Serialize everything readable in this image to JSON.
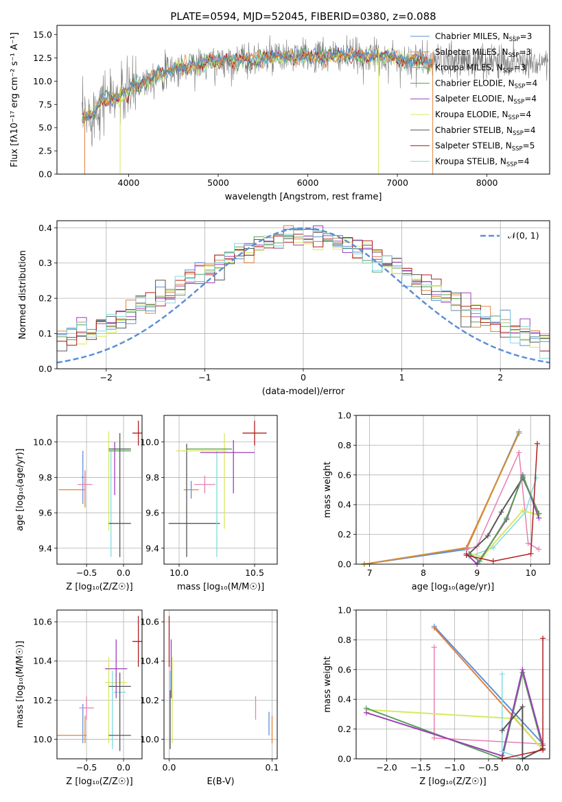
{
  "figure": {
    "title": "PLATE=0594, MJD=52045, FIBERID=0380, z=0.088",
    "colors": {
      "Chabrier MILES": "#5b8fd6",
      "Salpeter MILES": "#e0803c",
      "Kroupa MILES": "#c99a2e",
      "Chabrier ELODIE": "#5a9e5a",
      "Salpeter ELODIE": "#9b3fb5",
      "Kroupa ELODIE": "#d8e85e",
      "Chabrier STELIB": "#555555",
      "Salpeter STELIB": "#b01c1c",
      "Kroupa STELIB": "#7fdbe0",
      "pink": "#e77fb0",
      "gauss": "#5b8fd6"
    }
  },
  "chart_data": [
    {
      "id": "spectrum",
      "type": "line",
      "title": "PLATE=0594, MJD=52045, FIBERID=0380, z=0.088",
      "xlabel": "wavelength [Angstrom, rest frame]",
      "ylabel": "Flux [fλ10⁻¹⁷ erg cm⁻² s⁻¹ A⁻¹]",
      "xlim": [
        3200,
        8700
      ],
      "ylim": [
        0,
        16
      ],
      "xticks": [
        4000,
        5000,
        6000,
        7000,
        8000
      ],
      "yticks": [
        0.0,
        2.5,
        5.0,
        7.5,
        10.0,
        12.5,
        15.0
      ],
      "grid": false,
      "legend_position": "right",
      "legend": [
        {
          "name": "Chabrier MILES",
          "label": "Chabrier MILES, N",
          "sub": "SSP",
          "n": "=3"
        },
        {
          "name": "Salpeter MILES",
          "label": "Salpeter MILES, N",
          "sub": "SSP",
          "n": "=3"
        },
        {
          "name": "Kroupa MILES",
          "label": "Kroupa MILES, N",
          "sub": "SSP",
          "n": "=3"
        },
        {
          "name": "Chabrier ELODIE",
          "label": "Chabrier ELODIE, N",
          "sub": "SSP",
          "n": "=4"
        },
        {
          "name": "Salpeter ELODIE",
          "label": "Salpeter ELODIE, N",
          "sub": "SSP",
          "n": "=4"
        },
        {
          "name": "Kroupa ELODIE",
          "label": "Kroupa ELODIE, N",
          "sub": "SSP",
          "n": "=4"
        },
        {
          "name": "Chabrier STELIB",
          "label": "Chabrier STELIB, N",
          "sub": "SSP",
          "n": "=4"
        },
        {
          "name": "Salpeter STELIB",
          "label": "Salpeter STELIB, N",
          "sub": "SSP",
          "n": "=5"
        },
        {
          "name": "Kroupa STELIB",
          "label": "Kroupa STELIB, N",
          "sub": "SSP",
          "n": "=4"
        }
      ],
      "continuum": [
        [
          3500,
          6.0
        ],
        [
          3600,
          6.5
        ],
        [
          3700,
          8.2
        ],
        [
          3800,
          8.0
        ],
        [
          3900,
          8.3
        ],
        [
          4000,
          8.8
        ],
        [
          4100,
          9.7
        ],
        [
          4300,
          10.6
        ],
        [
          4500,
          11.2
        ],
        [
          4800,
          11.8
        ],
        [
          5000,
          12.1
        ],
        [
          5300,
          12.3
        ],
        [
          5600,
          12.5
        ],
        [
          6000,
          12.6
        ],
        [
          6500,
          12.7
        ],
        [
          6900,
          12.5
        ],
        [
          7200,
          12.2
        ],
        [
          7400,
          12.1
        ]
      ],
      "data_range": [
        3480,
        8680
      ],
      "model_range": [
        3480,
        7400
      ]
    },
    {
      "id": "residuals",
      "type": "line",
      "xlabel": "(data-model)/error",
      "ylabel": "Normed distribution",
      "xlim": [
        -2.5,
        2.5
      ],
      "ylim": [
        0,
        0.42
      ],
      "xticks": [
        -2,
        -1,
        0,
        1,
        2
      ],
      "yticks": [
        0.0,
        0.1,
        0.2,
        0.3,
        0.4
      ],
      "grid": true,
      "legend_position": "top-right",
      "gauss_label": "𝒩(0, 1)",
      "bin_width": 0.1
    },
    {
      "id": "age_vs_Z",
      "type": "scatter",
      "xlabel": "Z [log₁₀(Z/Z☉)]",
      "ylabel": "age  [log₁₀(age/yr)]",
      "xlim": [
        -0.9,
        0.25
      ],
      "ylim": [
        9.31,
        10.15
      ],
      "xticks": [
        -0.5,
        0.0
      ],
      "yticks": [
        9.4,
        9.6,
        9.8,
        10.0
      ],
      "grid": true,
      "points": [
        {
          "s": "Chabrier MILES",
          "x": -0.55,
          "y": 9.8,
          "ex": 0.02,
          "ey": 0.15
        },
        {
          "s": "Salpeter MILES",
          "x": -0.7,
          "y": 9.73,
          "ex": 0.18,
          "ey": 0.0
        },
        {
          "s": "Salpeter MILES",
          "x": -0.52,
          "y": 9.73,
          "ex": 0.0,
          "ey": 0.1
        },
        {
          "s": "pink",
          "x": -0.52,
          "y": 9.76,
          "ex": 0.1,
          "ey": 0.08
        },
        {
          "s": "Kroupa ELODIE",
          "x": -0.2,
          "y": 9.78,
          "ex": 0.0,
          "ey": 0.28
        },
        {
          "s": "Kroupa ELODIE",
          "x": -0.08,
          "y": 9.95,
          "ex": 0.12,
          "ey": 0.0
        },
        {
          "s": "Kroupa STELIB",
          "x": -0.17,
          "y": 9.65,
          "ex": 0.0,
          "ey": 0.3
        },
        {
          "s": "Salpeter ELODIE",
          "x": -0.12,
          "y": 9.85,
          "ex": 0.0,
          "ey": 0.15
        },
        {
          "s": "Chabrier ELODIE",
          "x": -0.05,
          "y": 9.95,
          "ex": 0.15,
          "ey": 0.0
        },
        {
          "s": "Chabrier STELIB",
          "x": -0.05,
          "y": 9.96,
          "ex": 0.15,
          "ey": 0.0
        },
        {
          "s": "Chabrier STELIB",
          "x": -0.05,
          "y": 9.54,
          "ex": 0.15,
          "ey": 0.0
        },
        {
          "s": "Chabrier STELIB",
          "x": -0.05,
          "y": 9.7,
          "ex": 0.0,
          "ey": 0.35
        },
        {
          "s": "Salpeter STELIB",
          "x": 0.2,
          "y": 10.05,
          "ex": 0.08,
          "ey": 0.07
        }
      ]
    },
    {
      "id": "age_vs_mass",
      "type": "scatter",
      "xlabel": "mass [log₁₀(M/M☉)]",
      "ylabel": "",
      "xlim": [
        9.9,
        10.65
      ],
      "ylim": [
        9.31,
        10.15
      ],
      "xticks": [
        10.0,
        10.5
      ],
      "yticks": [
        9.4,
        9.6,
        9.8,
        10.0
      ],
      "grid": true,
      "points": [
        {
          "s": "Salpeter MILES",
          "x": 10.08,
          "y": 9.73,
          "ex": 0.05,
          "ey": 0.0
        },
        {
          "s": "Chabrier MILES",
          "x": 10.08,
          "y": 9.73,
          "ex": 0.0,
          "ey": 0.05
        },
        {
          "s": "pink",
          "x": 10.17,
          "y": 9.76,
          "ex": 0.07,
          "ey": 0.05
        },
        {
          "s": "Chabrier STELIB",
          "x": 10.05,
          "y": 9.67,
          "ex": 0.0,
          "ey": 0.32
        },
        {
          "s": "Chabrier STELIB",
          "x": 10.1,
          "y": 9.54,
          "ex": 0.17,
          "ey": 0.0
        },
        {
          "s": "Kroupa STELIB",
          "x": 10.25,
          "y": 9.65,
          "ex": 0.0,
          "ey": 0.3
        },
        {
          "s": "Kroupa ELODIE",
          "x": 10.3,
          "y": 9.78,
          "ex": 0.0,
          "ey": 0.27
        },
        {
          "s": "Kroupa ELODIE",
          "x": 10.15,
          "y": 9.95,
          "ex": 0.17,
          "ey": 0.0
        },
        {
          "s": "Chabrier ELODIE",
          "x": 10.2,
          "y": 9.96,
          "ex": 0.15,
          "ey": 0.0
        },
        {
          "s": "Salpeter ELODIE",
          "x": 10.32,
          "y": 9.94,
          "ex": 0.18,
          "ey": 0.0
        },
        {
          "s": "Salpeter ELODIE",
          "x": 10.36,
          "y": 9.86,
          "ex": 0.0,
          "ey": 0.15
        },
        {
          "s": "Salpeter STELIB",
          "x": 10.5,
          "y": 10.05,
          "ex": 0.08,
          "ey": 0.07
        }
      ]
    },
    {
      "id": "weight_vs_age",
      "type": "line",
      "xlabel": "age  [log₁₀(age/yr)]",
      "ylabel": "mass weight",
      "xlim": [
        6.75,
        10.35
      ],
      "ylim": [
        0,
        1
      ],
      "xticks": [
        7,
        8,
        9,
        10
      ],
      "yticks": [
        0.0,
        0.2,
        0.4,
        0.6,
        0.8,
        1.0
      ],
      "grid": true,
      "series": [
        {
          "s": "Chabrier MILES",
          "w": 2,
          "x": [
            6.9,
            8.8,
            9.78
          ],
          "y": [
            0.0,
            0.1,
            0.89
          ]
        },
        {
          "s": "Salpeter MILES",
          "w": 2,
          "x": [
            6.9,
            8.8,
            9.78
          ],
          "y": [
            0.0,
            0.11,
            0.88
          ]
        },
        {
          "s": "Kroupa MILES",
          "w": 1,
          "x": [
            6.9,
            8.82,
            9.78
          ],
          "y": [
            0.0,
            0.11,
            0.88
          ]
        },
        {
          "s": "pink",
          "w": 1.5,
          "x": [
            8.8,
            9.0,
            9.78,
            9.95,
            10.15
          ],
          "y": [
            0.1,
            0.12,
            0.75,
            0.14,
            0.1
          ]
        },
        {
          "s": "Kroupa STELIB",
          "w": 1.5,
          "x": [
            8.85,
            9.3,
            9.9,
            10.1
          ],
          "y": [
            0.05,
            0.11,
            0.35,
            0.58
          ]
        },
        {
          "s": "Kroupa ELODIE",
          "w": 2,
          "x": [
            8.85,
            9.1,
            9.85,
            10.15
          ],
          "y": [
            0.07,
            0.05,
            0.36,
            0.33
          ]
        },
        {
          "s": "Chabrier STELIB",
          "w": 2,
          "x": [
            8.85,
            9.2,
            9.45,
            9.85,
            10.15
          ],
          "y": [
            0.07,
            0.19,
            0.35,
            0.58,
            0.34
          ]
        },
        {
          "s": "Salpeter ELODIE",
          "w": 2,
          "x": [
            8.8,
            9.0,
            9.55,
            9.85,
            10.15
          ],
          "y": [
            0.07,
            0.0,
            0.3,
            0.6,
            0.31
          ]
        },
        {
          "s": "Chabrier ELODIE",
          "w": 2,
          "x": [
            8.85,
            9.05,
            9.55,
            9.85,
            10.15
          ],
          "y": [
            0.07,
            0.02,
            0.31,
            0.59,
            0.34
          ]
        },
        {
          "s": "Salpeter STELIB",
          "w": 1.5,
          "x": [
            8.8,
            9.3,
            10.0,
            10.12
          ],
          "y": [
            0.06,
            0.02,
            0.07,
            0.81
          ]
        }
      ]
    },
    {
      "id": "mass_vs_Z",
      "type": "scatter",
      "xlabel": "Z [log₁₀(Z/Z☉)]",
      "ylabel": "mass [log₁₀(M/M☉)]",
      "xlim": [
        -0.9,
        0.25
      ],
      "ylim": [
        9.9,
        10.66
      ],
      "xticks": [
        -0.5,
        0.0
      ],
      "yticks": [
        10.0,
        10.2,
        10.4,
        10.6
      ],
      "grid": true,
      "points": [
        {
          "s": "Chabrier MILES",
          "x": -0.55,
          "y": 10.08,
          "ex": 0.0,
          "ey": 0.1
        },
        {
          "s": "Salpeter MILES",
          "x": -0.7,
          "y": 10.02,
          "ex": 0.2,
          "ey": 0.0
        },
        {
          "s": "Salpeter MILES",
          "x": -0.52,
          "y": 10.05,
          "ex": 0.0,
          "ey": 0.07
        },
        {
          "s": "pink",
          "x": -0.5,
          "y": 10.16,
          "ex": 0.1,
          "ey": 0.06
        },
        {
          "s": "Kroupa ELODIE",
          "x": -0.2,
          "y": 10.2,
          "ex": 0.0,
          "ey": 0.22
        },
        {
          "s": "Kroupa ELODIE",
          "x": -0.1,
          "y": 10.29,
          "ex": 0.15,
          "ey": 0.0
        },
        {
          "s": "Kroupa STELIB",
          "x": -0.15,
          "y": 10.15,
          "ex": 0.0,
          "ey": 0.2
        },
        {
          "s": "Kroupa STELIB",
          "x": -0.05,
          "y": 10.24,
          "ex": 0.08,
          "ey": 0.0
        },
        {
          "s": "Salpeter ELODIE",
          "x": -0.1,
          "y": 10.36,
          "ex": 0.15,
          "ey": 0.0
        },
        {
          "s": "Salpeter ELODIE",
          "x": -0.1,
          "y": 10.36,
          "ex": 0.0,
          "ey": 0.15
        },
        {
          "s": "Chabrier STELIB",
          "x": -0.05,
          "y": 10.27,
          "ex": 0.15,
          "ey": 0.0
        },
        {
          "s": "Chabrier STELIB",
          "x": -0.05,
          "y": 10.02,
          "ex": 0.15,
          "ey": 0.0
        },
        {
          "s": "Chabrier STELIB",
          "x": -0.05,
          "y": 10.14,
          "ex": 0.0,
          "ey": 0.2
        },
        {
          "s": "Salpeter STELIB",
          "x": 0.2,
          "y": 10.5,
          "ex": 0.08,
          "ey": 0.13
        }
      ]
    },
    {
      "id": "mass_vs_ebv",
      "type": "scatter",
      "xlabel": "E(B-V)",
      "ylabel": "",
      "xlim": [
        -0.005,
        0.105
      ],
      "ylim": [
        9.9,
        10.66
      ],
      "xticks": [
        0.0,
        0.1
      ],
      "yticks": [
        10.0,
        10.2,
        10.4,
        10.6
      ],
      "grid": true,
      "points": [
        {
          "s": "Salpeter STELIB",
          "x": 0.0,
          "y": 10.5,
          "ex": 0.0,
          "ey": 0.13
        },
        {
          "s": "Salpeter ELODIE",
          "x": 0.002,
          "y": 10.36,
          "ex": 0.0,
          "ey": 0.15
        },
        {
          "s": "Kroupa ELODIE",
          "x": 0.003,
          "y": 10.2,
          "ex": 0.0,
          "ey": 0.22
        },
        {
          "s": "Kroupa STELIB",
          "x": 0.001,
          "y": 10.15,
          "ex": 0.0,
          "ey": 0.2
        },
        {
          "s": "Chabrier STELIB",
          "x": 0.001,
          "y": 10.1,
          "ex": 0.0,
          "ey": 0.15
        },
        {
          "s": "pink",
          "x": 0.084,
          "y": 10.16,
          "ex": 0.0,
          "ey": 0.06
        },
        {
          "s": "Chabrier MILES",
          "x": 0.097,
          "y": 10.08,
          "ex": 0.0,
          "ey": 0.06
        },
        {
          "s": "Salpeter MILES",
          "x": 0.1,
          "y": 10.05,
          "ex": 0.0,
          "ey": 0.07
        }
      ]
    },
    {
      "id": "weight_vs_Z",
      "type": "line",
      "xlabel": "Z [log₁₀(Z/Z☉)]",
      "ylabel": "mass weight",
      "xlim": [
        -2.45,
        0.4
      ],
      "ylim": [
        0,
        1
      ],
      "xticks": [
        -2.0,
        -1.5,
        -1.0,
        -0.5,
        0.0
      ],
      "yticks": [
        0.0,
        0.2,
        0.4,
        0.6,
        0.8,
        1.0
      ],
      "grid": true,
      "series": [
        {
          "s": "Chabrier MILES",
          "w": 2,
          "x": [
            -1.3,
            0.3
          ],
          "y": [
            0.89,
            0.1
          ]
        },
        {
          "s": "Salpeter MILES",
          "w": 2,
          "x": [
            -1.3,
            0.3
          ],
          "y": [
            0.88,
            0.06
          ]
        },
        {
          "s": "pink",
          "w": 1.5,
          "x": [
            -1.3,
            -1.3,
            0.3
          ],
          "y": [
            0.75,
            0.14,
            0.1
          ]
        },
        {
          "s": "Kroupa ELODIE",
          "w": 2,
          "x": [
            -2.3,
            -0.1,
            0.3
          ],
          "y": [
            0.33,
            0.27,
            0.06
          ]
        },
        {
          "s": "Chabrier ELODIE",
          "w": 2,
          "x": [
            -2.3,
            -0.3,
            0.0,
            0.3
          ],
          "y": [
            0.34,
            0.0,
            0.58,
            0.07
          ]
        },
        {
          "s": "Salpeter ELODIE",
          "w": 2,
          "x": [
            -2.3,
            -0.3,
            0.0,
            0.3
          ],
          "y": [
            0.31,
            0.02,
            0.6,
            0.09
          ]
        },
        {
          "s": "Kroupa STELIB",
          "w": 1.5,
          "x": [
            -0.3,
            -0.3,
            0.0
          ],
          "y": [
            0.57,
            0.05,
            0.0
          ]
        },
        {
          "s": "Chabrier STELIB",
          "w": 2,
          "x": [
            -0.3,
            0.0,
            0.0,
            0.3
          ],
          "y": [
            0.19,
            0.35,
            0.0,
            0.07
          ]
        },
        {
          "s": "Salpeter STELIB",
          "w": 1.5,
          "x": [
            -0.3,
            0.3,
            0.3
          ],
          "y": [
            0.0,
            0.06,
            0.81
          ]
        }
      ]
    }
  ]
}
